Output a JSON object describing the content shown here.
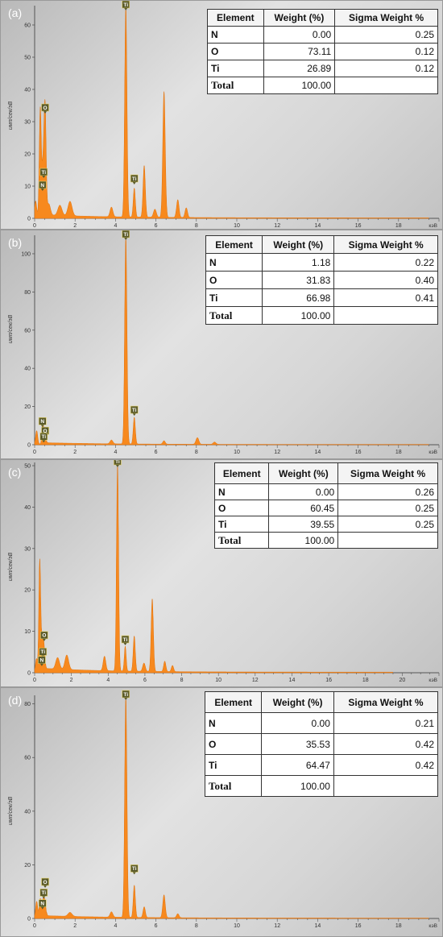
{
  "chart_data": [
    {
      "type": "line",
      "panel_label": "(a)",
      "xlabel": "кэВ",
      "ylabel": "имп/сек/эВ",
      "xlim": [
        0,
        20
      ],
      "ylim": [
        0,
        65
      ],
      "x_ticks": [
        0,
        2,
        4,
        6,
        8,
        10,
        12,
        14,
        16,
        18
      ],
      "y_ticks": [
        0,
        10,
        20,
        30,
        40,
        50,
        60
      ],
      "peaks": [
        {
          "x": 0.05,
          "y": 5,
          "w": 0.05
        },
        {
          "x": 0.28,
          "y": 34,
          "w": 0.05
        },
        {
          "x": 0.39,
          "y": 8,
          "w": 0.04
        },
        {
          "x": 0.45,
          "y": 12,
          "w": 0.05
        },
        {
          "x": 0.52,
          "y": 31,
          "w": 0.05
        },
        {
          "x": 0.7,
          "y": 3.5,
          "w": 0.08
        },
        {
          "x": 1.25,
          "y": 3.2,
          "w": 0.1
        },
        {
          "x": 1.75,
          "y": 4.5,
          "w": 0.1
        },
        {
          "x": 3.8,
          "y": 3,
          "w": 0.07
        },
        {
          "x": 4.51,
          "y": 65,
          "w": 0.055
        },
        {
          "x": 4.93,
          "y": 9,
          "w": 0.05
        },
        {
          "x": 5.42,
          "y": 16,
          "w": 0.055
        },
        {
          "x": 5.95,
          "y": 2.5,
          "w": 0.07
        },
        {
          "x": 6.4,
          "y": 39,
          "w": 0.06
        },
        {
          "x": 7.08,
          "y": 5.5,
          "w": 0.06
        },
        {
          "x": 7.5,
          "y": 3,
          "w": 0.06
        }
      ],
      "markers": [
        {
          "label": "Ti",
          "x": 4.51,
          "y": 65
        },
        {
          "label": "O",
          "x": 0.52,
          "y": 33
        },
        {
          "label": "Ti",
          "x": 0.45,
          "y": 13
        },
        {
          "label": "N",
          "x": 0.39,
          "y": 9
        },
        {
          "label": "Ti",
          "x": 4.93,
          "y": 11
        }
      ],
      "table": {
        "headers": [
          "Element",
          "Weight (%)",
          "Sigma Weight %"
        ],
        "rows": [
          [
            "N",
            "0.00",
            "0.25"
          ],
          [
            "O",
            "73.11",
            "0.12"
          ],
          [
            "Ti",
            "26.89",
            "0.12"
          ]
        ],
        "total": [
          "Total",
          "100.00",
          ""
        ]
      }
    },
    {
      "type": "line",
      "panel_label": "(b)",
      "xlabel": "кэВ",
      "ylabel": "имп/сек/эВ",
      "xlim": [
        0,
        20
      ],
      "ylim": [
        0,
        108
      ],
      "x_ticks": [
        0,
        2,
        4,
        6,
        8,
        10,
        12,
        14,
        16,
        18
      ],
      "y_ticks": [
        0,
        20,
        40,
        60,
        80,
        100
      ],
      "peaks": [
        {
          "x": 0.1,
          "y": 7,
          "w": 0.05
        },
        {
          "x": 0.39,
          "y": 8,
          "w": 0.04
        },
        {
          "x": 0.45,
          "y": 5,
          "w": 0.04
        },
        {
          "x": 0.52,
          "y": 3,
          "w": 0.05
        },
        {
          "x": 3.8,
          "y": 2,
          "w": 0.07
        },
        {
          "x": 4.51,
          "y": 108,
          "w": 0.055
        },
        {
          "x": 4.93,
          "y": 14,
          "w": 0.05
        },
        {
          "x": 6.4,
          "y": 1.8,
          "w": 0.06
        },
        {
          "x": 8.05,
          "y": 3.5,
          "w": 0.07
        },
        {
          "x": 8.9,
          "y": 1.2,
          "w": 0.07
        }
      ],
      "markers": [
        {
          "label": "Ti",
          "x": 4.51,
          "y": 108
        },
        {
          "label": "N",
          "x": 0.39,
          "y": 10
        },
        {
          "label": "O",
          "x": 0.52,
          "y": 5
        },
        {
          "label": "Ti",
          "x": 0.45,
          "y": 2
        },
        {
          "label": "Ti",
          "x": 4.93,
          "y": 16
        }
      ],
      "table": {
        "headers": [
          "Element",
          "Weight (%)",
          "Sigma Weight %"
        ],
        "rows": [
          [
            "N",
            "1.18",
            "0.22"
          ],
          [
            "O",
            "31.83",
            "0.40"
          ],
          [
            "Ti",
            "66.98",
            "0.41"
          ]
        ],
        "total": [
          "Total",
          "100.00",
          ""
        ]
      }
    },
    {
      "type": "line",
      "panel_label": "(c)",
      "xlabel": "кэВ",
      "ylabel": "имп/сек/эВ",
      "xlim": [
        0,
        22
      ],
      "ylim": [
        0,
        50
      ],
      "x_ticks": [
        0,
        2,
        4,
        6,
        8,
        10,
        12,
        14,
        16,
        18,
        20
      ],
      "y_ticks": [
        0,
        10,
        20,
        30,
        40,
        50
      ],
      "peaks": [
        {
          "x": 0.1,
          "y": 3,
          "w": 0.05
        },
        {
          "x": 0.28,
          "y": 27,
          "w": 0.05
        },
        {
          "x": 0.39,
          "y": 4,
          "w": 0.04
        },
        {
          "x": 0.45,
          "y": 6,
          "w": 0.05
        },
        {
          "x": 0.52,
          "y": 4,
          "w": 0.05
        },
        {
          "x": 1.25,
          "y": 2.8,
          "w": 0.1
        },
        {
          "x": 1.75,
          "y": 3.5,
          "w": 0.1
        },
        {
          "x": 3.8,
          "y": 3.5,
          "w": 0.07
        },
        {
          "x": 4.51,
          "y": 50,
          "w": 0.055
        },
        {
          "x": 4.93,
          "y": 6,
          "w": 0.05
        },
        {
          "x": 5.42,
          "y": 8.5,
          "w": 0.055
        },
        {
          "x": 5.95,
          "y": 2,
          "w": 0.07
        },
        {
          "x": 6.4,
          "y": 17.5,
          "w": 0.06
        },
        {
          "x": 7.08,
          "y": 2.5,
          "w": 0.06
        },
        {
          "x": 7.5,
          "y": 1.5,
          "w": 0.06
        }
      ],
      "markers": [
        {
          "label": "Ti",
          "x": 4.51,
          "y": 50
        },
        {
          "label": "O",
          "x": 0.52,
          "y": 8
        },
        {
          "label": "Ti",
          "x": 0.45,
          "y": 4
        },
        {
          "label": "N",
          "x": 0.39,
          "y": 2
        },
        {
          "label": "Ti",
          "x": 4.93,
          "y": 7
        }
      ],
      "table": {
        "headers": [
          "Element",
          "Weight (%)",
          "Sigma Weight %"
        ],
        "rows": [
          [
            "N",
            "0.00",
            "0.26"
          ],
          [
            "O",
            "60.45",
            "0.25"
          ],
          [
            "Ti",
            "39.55",
            "0.25"
          ]
        ],
        "total": [
          "Total",
          "100.00",
          ""
        ]
      }
    },
    {
      "type": "line",
      "panel_label": "(d)",
      "xlabel": "кэВ",
      "ylabel": "имп/сек/эВ",
      "xlim": [
        0,
        20
      ],
      "ylim": [
        0,
        82
      ],
      "x_ticks": [
        0,
        2,
        4,
        6,
        8,
        10,
        12,
        14,
        16,
        18
      ],
      "y_ticks": [
        0,
        20,
        40,
        60,
        80
      ],
      "peaks": [
        {
          "x": 0.1,
          "y": 6,
          "w": 0.05
        },
        {
          "x": 0.28,
          "y": 7,
          "w": 0.05
        },
        {
          "x": 0.39,
          "y": 3,
          "w": 0.04
        },
        {
          "x": 0.45,
          "y": 5,
          "w": 0.05
        },
        {
          "x": 0.52,
          "y": 4,
          "w": 0.05
        },
        {
          "x": 1.75,
          "y": 1.5,
          "w": 0.1
        },
        {
          "x": 3.8,
          "y": 2,
          "w": 0.07
        },
        {
          "x": 4.51,
          "y": 82,
          "w": 0.055
        },
        {
          "x": 4.93,
          "y": 12,
          "w": 0.05
        },
        {
          "x": 5.42,
          "y": 4,
          "w": 0.055
        },
        {
          "x": 6.4,
          "y": 8.5,
          "w": 0.06
        },
        {
          "x": 7.08,
          "y": 1.5,
          "w": 0.06
        }
      ],
      "markers": [
        {
          "label": "Ti",
          "x": 4.51,
          "y": 82
        },
        {
          "label": "O",
          "x": 0.52,
          "y": 12
        },
        {
          "label": "Ti",
          "x": 0.45,
          "y": 8
        },
        {
          "label": "N",
          "x": 0.39,
          "y": 4
        },
        {
          "label": "Ti",
          "x": 4.93,
          "y": 17
        }
      ],
      "table": {
        "headers": [
          "Element",
          "Weight (%)",
          "Sigma Weight %"
        ],
        "rows": [
          [
            "N",
            "0.00",
            "0.21"
          ],
          [
            "O",
            "35.53",
            "0.42"
          ],
          [
            "Ti",
            "64.47",
            "0.42"
          ]
        ],
        "total": [
          "Total",
          "100.00",
          ""
        ]
      }
    }
  ],
  "colors": {
    "spectrum": "#f7891e",
    "spectrum_edge": "#e0700a",
    "marker_fill": "#5a5a2a",
    "marker_text": "#ffffff",
    "axis": "#555555"
  }
}
